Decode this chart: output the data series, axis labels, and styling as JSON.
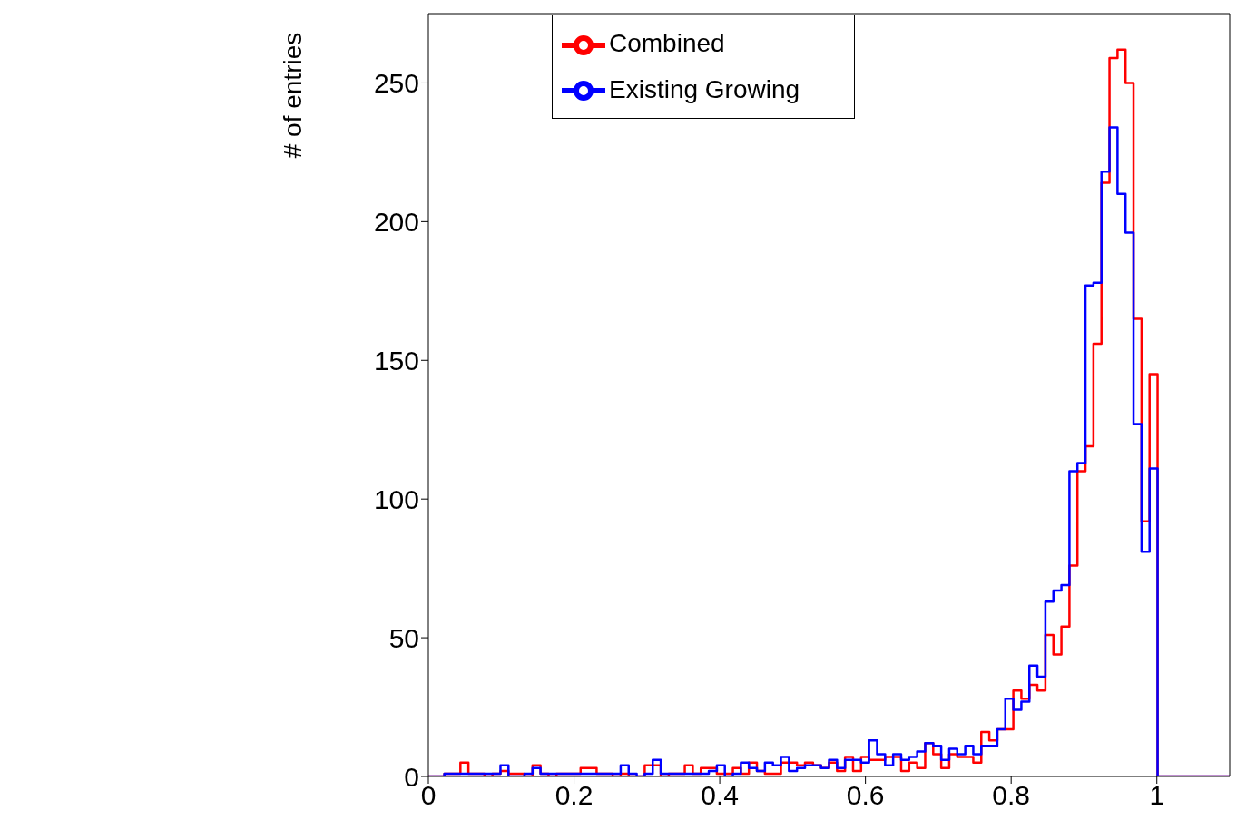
{
  "chart_data": {
    "type": "histogram",
    "ylabel": "# of entries",
    "bins": [
      0,
      0.011,
      0.022,
      0.033,
      0.044,
      0.055,
      0.066,
      0.077,
      0.088,
      0.099,
      0.11,
      0.121,
      0.132,
      0.143,
      0.154,
      0.165,
      0.176,
      0.187,
      0.198,
      0.209,
      0.22,
      0.231,
      0.242,
      0.253,
      0.264,
      0.275,
      0.286,
      0.297,
      0.308,
      0.319,
      0.33,
      0.341,
      0.352,
      0.363,
      0.374,
      0.385,
      0.396,
      0.407,
      0.418,
      0.429,
      0.44,
      0.451,
      0.462,
      0.473,
      0.484,
      0.495,
      0.506,
      0.517,
      0.528,
      0.539,
      0.55,
      0.561,
      0.572,
      0.583,
      0.594,
      0.605,
      0.616,
      0.627,
      0.638,
      0.649,
      0.66,
      0.671,
      0.682,
      0.693,
      0.704,
      0.715,
      0.726,
      0.737,
      0.748,
      0.759,
      0.77,
      0.781,
      0.792,
      0.803,
      0.814,
      0.825,
      0.836,
      0.847,
      0.858,
      0.869,
      0.88,
      0.891,
      0.902,
      0.913,
      0.924,
      0.935,
      0.946,
      0.957,
      0.968,
      0.979,
      0.99,
      1.001,
      1.012,
      1.023,
      1.034,
      1.045,
      1.056,
      1.067,
      1.078,
      1.089,
      1.1
    ],
    "series": [
      {
        "name": "Combined",
        "color": "#ff0000",
        "values": [
          0,
          0,
          1,
          1,
          5,
          1,
          1,
          0,
          1,
          2,
          1,
          1,
          0,
          4,
          1,
          0,
          1,
          1,
          1,
          3,
          3,
          1,
          1,
          0,
          1,
          0,
          0,
          4,
          4,
          0,
          1,
          1,
          4,
          1,
          3,
          3,
          1,
          1,
          3,
          1,
          5,
          2,
          1,
          1,
          5,
          5,
          4,
          5,
          4,
          3,
          5,
          2,
          7,
          2,
          7,
          6,
          6,
          7,
          7,
          2,
          5,
          3,
          12,
          8,
          3,
          8,
          7,
          7,
          5,
          16,
          13,
          17,
          17,
          31,
          28,
          33,
          31,
          51,
          44,
          54,
          76,
          110,
          119,
          156,
          214,
          259,
          262,
          250,
          165,
          92,
          145,
          0,
          0,
          0,
          0,
          0,
          0,
          0,
          0,
          0
        ]
      },
      {
        "name": "Existing Growing",
        "color": "#0000ff",
        "values": [
          0,
          0,
          1,
          1,
          1,
          1,
          1,
          1,
          1,
          4,
          0,
          0,
          1,
          3,
          1,
          1,
          1,
          1,
          1,
          1,
          1,
          1,
          1,
          1,
          4,
          1,
          0,
          1,
          6,
          1,
          1,
          1,
          1,
          1,
          1,
          2,
          4,
          0,
          1,
          5,
          3,
          2,
          5,
          4,
          7,
          2,
          3,
          4,
          4,
          3,
          6,
          3,
          6,
          6,
          5,
          13,
          8,
          4,
          8,
          6,
          7,
          9,
          12,
          11,
          6,
          10,
          8,
          11,
          8,
          11,
          11,
          17,
          28,
          24,
          27,
          40,
          36,
          63,
          67,
          69,
          110,
          113,
          177,
          178,
          218,
          234,
          210,
          196,
          127,
          81,
          111,
          0,
          0,
          0,
          0,
          0,
          0,
          0,
          0,
          0
        ]
      }
    ],
    "xlim": [
      0,
      1.1
    ],
    "xticks": [
      0,
      0.2,
      0.4,
      0.6,
      0.8,
      1
    ],
    "ylim": [
      0,
      275
    ],
    "yticks": [
      0,
      50,
      100,
      150,
      200,
      250
    ],
    "legend": "top"
  }
}
